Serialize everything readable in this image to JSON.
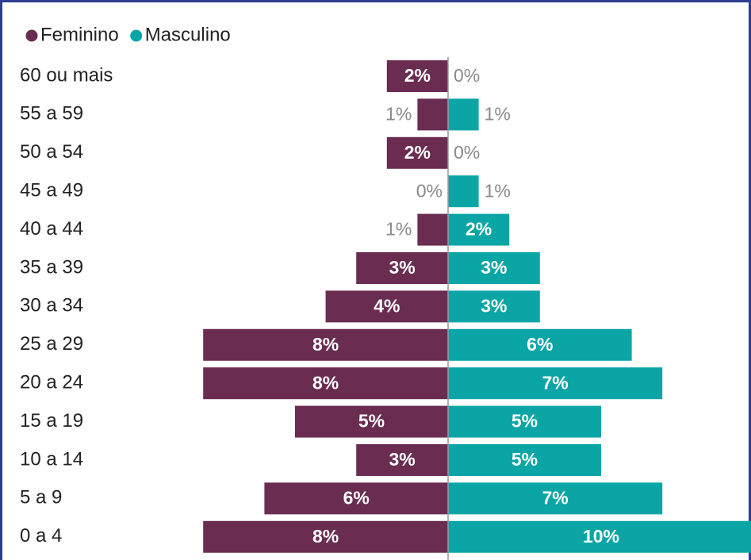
{
  "chart_data": {
    "type": "pyramid",
    "categories": [
      "60 ou mais",
      "55 a 59",
      "50 a 54",
      "45 a 49",
      "40 a 44",
      "35 a 39",
      "30 a 34",
      "25 a 29",
      "20 a 24",
      "15 a 19",
      "10 a 14",
      "5 a 9",
      "0 a 4"
    ],
    "series": [
      {
        "name": "Feminino",
        "color": "#6a2c50",
        "side": "left",
        "values": [
          2,
          1,
          2,
          0,
          1,
          3,
          4,
          8,
          8,
          5,
          3,
          6,
          8
        ],
        "value_labels": [
          "2%",
          "1%",
          "2%",
          "0%",
          "1%",
          "3%",
          "4%",
          "8%",
          "8%",
          "5%",
          "3%",
          "6%",
          "8%"
        ]
      },
      {
        "name": "Masculino",
        "color": "#0ba5a6",
        "side": "right",
        "values": [
          0,
          1,
          0,
          1,
          2,
          3,
          3,
          6,
          7,
          5,
          5,
          7,
          10
        ],
        "value_labels": [
          "0%",
          "1%",
          "0%",
          "1%",
          "2%",
          "3%",
          "3%",
          "6%",
          "7%",
          "5%",
          "5%",
          "7%",
          "10%"
        ]
      }
    ]
  }
}
